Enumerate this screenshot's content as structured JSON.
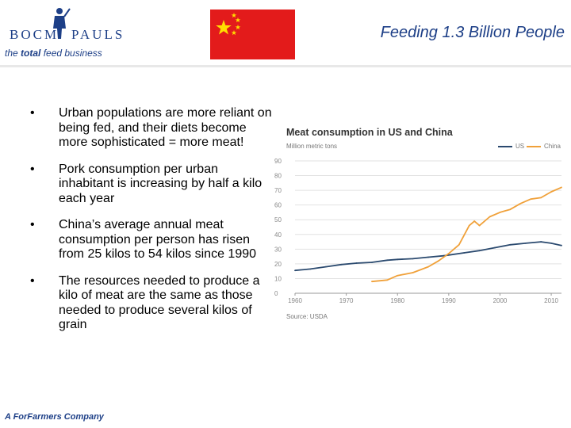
{
  "header": {
    "logo_left": "BOCM",
    "logo_right": "PAULS",
    "tagline_pre": "the ",
    "tagline_bold": "total",
    "tagline_post": " feed business",
    "title": "Feeding 1.3  Billion People"
  },
  "bullets": [
    "Urban populations are more reliant on being fed, and their diets become more sophisticated = more meat!",
    "Pork consumption per urban inhabitant is increasing by half a kilo each year",
    "China’s average annual meat consumption per person has risen from 25 kilos to 54 kilos since 1990",
    "The resources needed to produce a kilo of meat are the same as those needed to produce several kilos of grain"
  ],
  "bullet_marker": "•",
  "footer": "A ForFarmers Company",
  "colors": {
    "us": "#2b4a6f",
    "china": "#f0a13a",
    "flag_red": "#e31b1b",
    "star": "#ffde00",
    "brand": "#1d3f87"
  },
  "chart_data": {
    "type": "line",
    "title": "Meat consumption in US and China",
    "units": "Million metric tons",
    "source": "Source: USDA",
    "ylim": [
      0,
      90
    ],
    "xlim": [
      1960,
      2012
    ],
    "yticks": [
      0,
      10,
      20,
      30,
      40,
      50,
      60,
      70,
      80,
      90
    ],
    "xticks": [
      1960,
      1970,
      1980,
      1990,
      2000,
      2010
    ],
    "grid": true,
    "legend": "top-right",
    "series": [
      {
        "name": "US",
        "color": "#2b4a6f",
        "x": [
          1960,
          1963,
          1966,
          1969,
          1972,
          1975,
          1978,
          1980,
          1983,
          1986,
          1989,
          1990,
          1993,
          1996,
          1999,
          2002,
          2005,
          2008,
          2010,
          2012
        ],
        "y": [
          15.5,
          16.5,
          18,
          19.5,
          20.5,
          21,
          22.5,
          23,
          23.5,
          24.5,
          25.5,
          26,
          27.5,
          29,
          31,
          33,
          34,
          35,
          34,
          32.5
        ]
      },
      {
        "name": "China",
        "color": "#f0a13a",
        "x": [
          1975,
          1978,
          1980,
          1983,
          1986,
          1988,
          1990,
          1992,
          1994,
          1995,
          1996,
          1998,
          2000,
          2002,
          2004,
          2006,
          2008,
          2010,
          2012
        ],
        "y": [
          8,
          9,
          12,
          14,
          18,
          22,
          27,
          33,
          46,
          49,
          46,
          52,
          55,
          57,
          61,
          64,
          65,
          69,
          72
        ]
      }
    ]
  }
}
